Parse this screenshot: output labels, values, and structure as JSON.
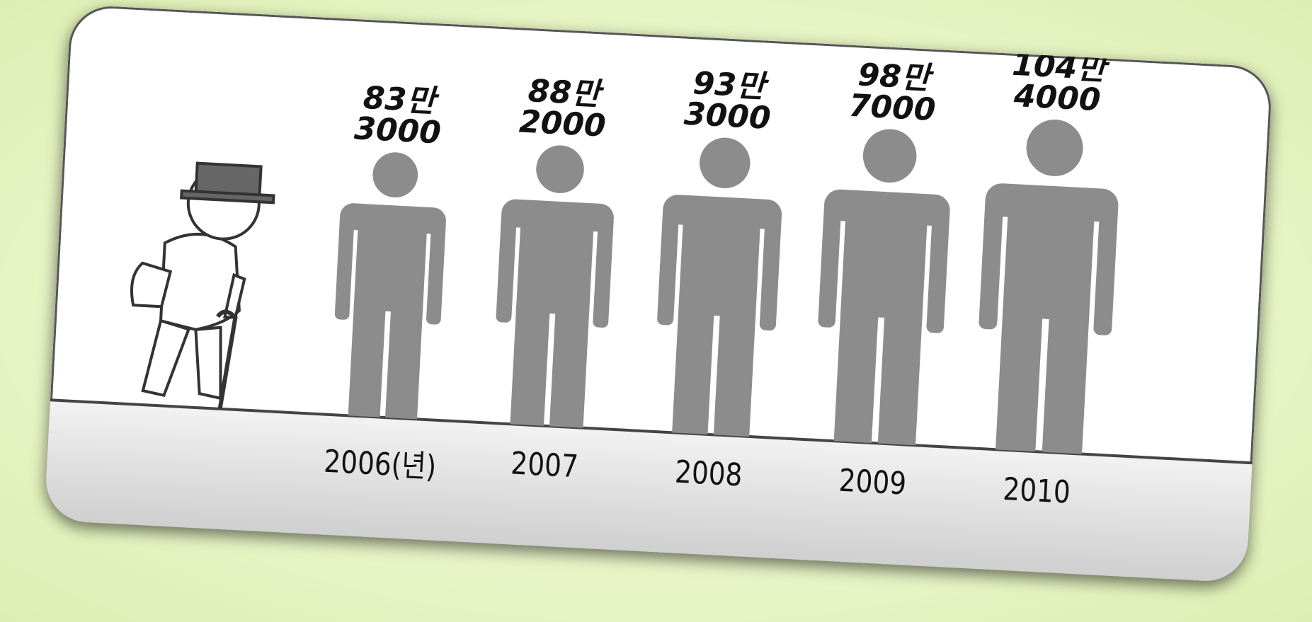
{
  "chart_data": {
    "type": "pictograph",
    "categories": [
      "2006(년)",
      "2007",
      "2008",
      "2009",
      "2010"
    ],
    "values": [
      833000,
      882000,
      933000,
      987000,
      1044000
    ],
    "value_labels": [
      "83만\n3000",
      "88만\n2000",
      "93만\n3000",
      "98만\n7000",
      "104만\n4000"
    ],
    "color": "#8c8c8c"
  }
}
